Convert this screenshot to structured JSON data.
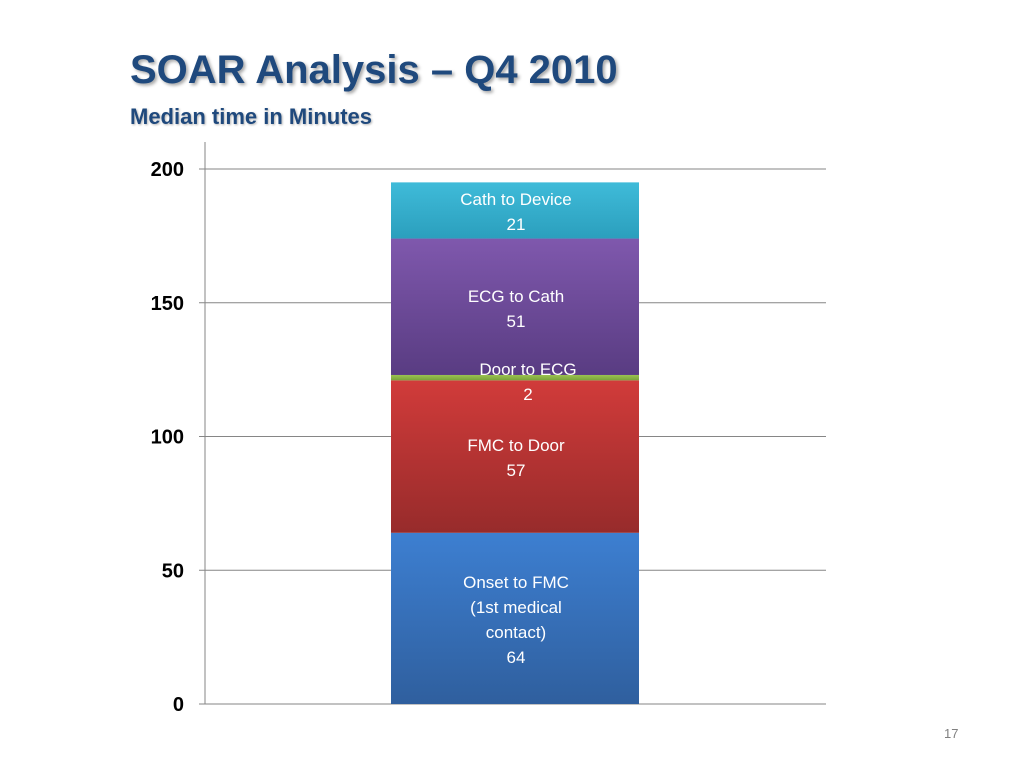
{
  "slide": {
    "title": "SOAR Analysis – Q4 2010",
    "subtitle": "Median time in Minutes",
    "page_number": "17"
  },
  "chart_data": {
    "type": "bar",
    "stacked": true,
    "categories": [
      ""
    ],
    "ylim": [
      0,
      200
    ],
    "yticks": [
      0,
      50,
      100,
      150,
      200
    ],
    "grid": true,
    "series": [
      {
        "name": "Onset to FMC (1st medical contact)",
        "values": [
          64
        ],
        "label_lines": [
          "Onset to FMC",
          "(1st medical",
          "contact)",
          "64"
        ],
        "color": "#2f5f9e",
        "color_light": "#3d7fd1"
      },
      {
        "name": "FMC to Door",
        "values": [
          57
        ],
        "label_lines": [
          "FMC to Door",
          "57"
        ],
        "color": "#972b2b",
        "color_light": "#d13b3a"
      },
      {
        "name": "Door to ECG",
        "values": [
          2
        ],
        "label_lines": [
          "Door to ECG",
          "2"
        ],
        "color": "#79a33a",
        "color_light": "#9bc250"
      },
      {
        "name": "ECG to Cath",
        "values": [
          51
        ],
        "label_lines": [
          "ECG to Cath",
          "51"
        ],
        "color": "#593c82",
        "color_light": "#7f58ad"
      },
      {
        "name": "Cath to Device",
        "values": [
          21
        ],
        "label_lines": [
          "Cath to Device",
          "21"
        ],
        "color": "#2b9fbd",
        "color_light": "#3fbbd9"
      }
    ]
  }
}
